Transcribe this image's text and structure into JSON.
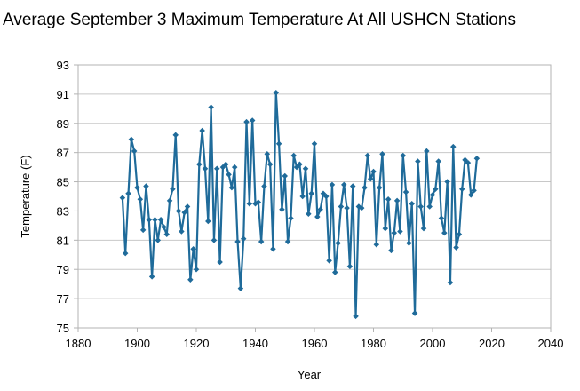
{
  "chart_data": {
    "type": "line",
    "title": "Average September 3 Maximum Temperature At All USHCN Stations",
    "xlabel": "Year",
    "ylabel": "Temperature (F)",
    "xlim": [
      1880,
      2040
    ],
    "ylim": [
      75,
      93
    ],
    "xticks": [
      1880,
      1900,
      1920,
      1940,
      1960,
      1980,
      2000,
      2020,
      2040
    ],
    "yticks": [
      75,
      77,
      79,
      81,
      83,
      85,
      87,
      89,
      91,
      93
    ],
    "grid": "horizontal",
    "legend": "none",
    "color": "#1f6b9a",
    "series": [
      {
        "x": [
          1895,
          1896,
          1897,
          1898,
          1899,
          1900,
          1901,
          1902,
          1903,
          1904,
          1905,
          1906,
          1907,
          1908,
          1909,
          1910,
          1911,
          1912,
          1913,
          1914,
          1915,
          1916,
          1917,
          1918,
          1919,
          1920,
          1921,
          1922,
          1923,
          1924,
          1925,
          1926,
          1927,
          1928,
          1929,
          1930,
          1931,
          1932,
          1933,
          1934,
          1935,
          1936,
          1937,
          1938,
          1939,
          1940,
          1941,
          1942,
          1943,
          1944,
          1945,
          1946,
          1947,
          1948,
          1949,
          1950,
          1951,
          1952,
          1953,
          1954,
          1955,
          1956,
          1957,
          1958,
          1959,
          1960,
          1961,
          1962,
          1963,
          1964,
          1965,
          1966,
          1967,
          1968,
          1969,
          1970,
          1971,
          1972,
          1973,
          1974,
          1975,
          1976,
          1977,
          1978,
          1979,
          1980,
          1981,
          1982,
          1983,
          1984,
          1985,
          1986,
          1987,
          1988,
          1989,
          1990,
          1991,
          1992,
          1993,
          1994,
          1995,
          1996,
          1997,
          1998,
          1999,
          2000,
          2001,
          2002,
          2003,
          2004,
          2005,
          2006,
          2007,
          2008,
          2009,
          2010,
          2011,
          2012,
          2013,
          2014,
          2015
        ],
        "y": [
          83.9,
          80.1,
          84.2,
          87.9,
          87.1,
          84.6,
          83.8,
          81.7,
          84.7,
          82.4,
          78.5,
          82.4,
          81.0,
          82.4,
          81.9,
          81.4,
          83.7,
          84.5,
          88.2,
          83.0,
          81.6,
          82.9,
          83.3,
          78.3,
          80.4,
          79.0,
          86.2,
          88.5,
          85.9,
          82.3,
          90.1,
          81.0,
          85.9,
          79.5,
          86.0,
          86.2,
          85.5,
          84.6,
          86.0,
          80.9,
          77.7,
          81.1,
          89.1,
          83.5,
          89.2,
          83.5,
          83.6,
          80.9,
          84.7,
          86.9,
          86.2,
          80.4,
          91.1,
          87.6,
          83.1,
          85.4,
          80.9,
          82.5,
          86.8,
          86.0,
          86.2,
          84.0,
          85.9,
          82.8,
          84.2,
          87.6,
          82.6,
          83.1,
          84.2,
          84.0,
          79.6,
          84.8,
          78.8,
          80.8,
          83.3,
          84.8,
          83.2,
          79.2,
          84.7,
          75.8,
          83.3,
          83.2,
          84.6,
          86.8,
          85.2,
          85.7,
          80.7,
          84.6,
          86.9,
          81.8,
          83.8,
          80.3,
          81.5,
          83.7,
          81.6,
          86.8,
          84.3,
          80.8,
          83.5,
          76.0,
          86.4,
          83.3,
          81.8,
          87.1,
          83.3,
          84.1,
          84.5,
          86.4,
          82.5,
          81.5,
          85.0,
          78.1,
          87.4,
          80.5,
          81.4,
          84.5,
          86.5,
          86.3,
          84.1,
          84.4,
          86.6
        ]
      }
    ]
  }
}
